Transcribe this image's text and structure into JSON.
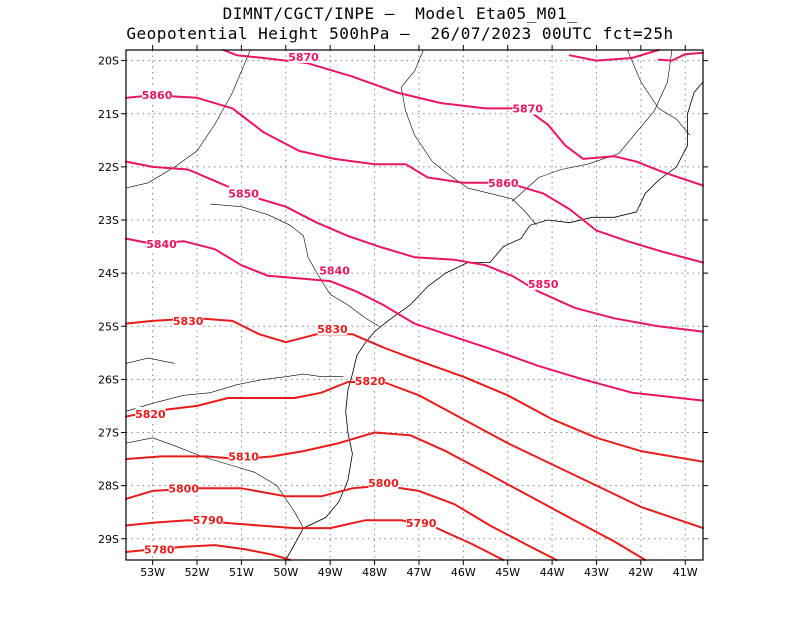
{
  "title_line1": "DIMNT/CGCT/INPE –  Model Eta05_M01_",
  "title_line2": "Geopotential Height 500hPa –  26/07/2023 00UTC fct=25h",
  "colors": {
    "pink": "#e8175d",
    "red": "#e81b1b",
    "coast": "#000000",
    "grid": "#888888"
  },
  "chart_data": {
    "type": "contour",
    "xlim": [
      -53.6,
      -40.6
    ],
    "ylim": [
      -29.4,
      -19.8
    ],
    "x_ticks": [
      {
        "v": -53,
        "label": "53W"
      },
      {
        "v": -52,
        "label": "52W"
      },
      {
        "v": -51,
        "label": "51W"
      },
      {
        "v": -50,
        "label": "50W"
      },
      {
        "v": -49,
        "label": "49W"
      },
      {
        "v": -48,
        "label": "48W"
      },
      {
        "v": -47,
        "label": "47W"
      },
      {
        "v": -46,
        "label": "46W"
      },
      {
        "v": -45,
        "label": "45W"
      },
      {
        "v": -44,
        "label": "44W"
      },
      {
        "v": -43,
        "label": "43W"
      },
      {
        "v": -42,
        "label": "42W"
      },
      {
        "v": -41,
        "label": "41W"
      }
    ],
    "y_ticks": [
      {
        "v": -20,
        "label": "20S"
      },
      {
        "v": -21,
        "label": "21S"
      },
      {
        "v": -22,
        "label": "22S"
      },
      {
        "v": -23,
        "label": "23S"
      },
      {
        "v": -24,
        "label": "24S"
      },
      {
        "v": -25,
        "label": "25S"
      },
      {
        "v": -26,
        "label": "26S"
      },
      {
        "v": -27,
        "label": "27S"
      },
      {
        "v": -28,
        "label": "28S"
      },
      {
        "v": -29,
        "label": "29S"
      }
    ],
    "grid": true,
    "contours": [
      {
        "level": "5870",
        "color": "pink",
        "points": [
          [
            -51.4,
            -19.8
          ],
          [
            -51.1,
            -19.9
          ],
          [
            -50.5,
            -19.95
          ],
          [
            -49.5,
            -20.05
          ],
          [
            -48.5,
            -20.3
          ],
          [
            -47.5,
            -20.6
          ],
          [
            -46.5,
            -20.8
          ],
          [
            -45.5,
            -20.9
          ],
          [
            -44.6,
            -20.9
          ],
          [
            -44.1,
            -21.2
          ],
          [
            -43.7,
            -21.6
          ],
          [
            -43.3,
            -21.85
          ],
          [
            -42.6,
            -21.8
          ],
          [
            -42.1,
            -21.9
          ],
          [
            -41.5,
            -22.1
          ],
          [
            -40.6,
            -22.35
          ]
        ],
        "labels": [
          {
            "x": -49.6,
            "y": -19.93
          },
          {
            "x": -44.55,
            "y": -20.9
          }
        ]
      },
      {
        "level": "5870",
        "color": "pink",
        "points": [
          [
            -41.6,
            -19.8
          ],
          [
            -42.2,
            -19.95
          ],
          [
            -43.0,
            -20.0
          ],
          [
            -43.6,
            -19.9
          ]
        ],
        "labels": []
      },
      {
        "level": "5870",
        "color": "pink",
        "points": [
          [
            -40.6,
            -19.85
          ],
          [
            -41.0,
            -19.88
          ],
          [
            -41.3,
            -20.0
          ],
          [
            -41.6,
            -19.98
          ]
        ],
        "labels": []
      },
      {
        "level": "5860",
        "color": "pink",
        "points": [
          [
            -53.6,
            -20.7
          ],
          [
            -53.0,
            -20.65
          ],
          [
            -52.0,
            -20.7
          ],
          [
            -51.2,
            -20.9
          ],
          [
            -50.5,
            -21.35
          ],
          [
            -49.7,
            -21.7
          ],
          [
            -48.9,
            -21.85
          ],
          [
            -48.0,
            -21.95
          ],
          [
            -47.3,
            -21.95
          ],
          [
            -46.8,
            -22.2
          ],
          [
            -46.0,
            -22.3
          ],
          [
            -45.0,
            -22.3
          ],
          [
            -44.2,
            -22.5
          ],
          [
            -43.6,
            -22.8
          ],
          [
            -43.0,
            -23.2
          ],
          [
            -42.3,
            -23.4
          ],
          [
            -41.5,
            -23.6
          ],
          [
            -40.6,
            -23.8
          ]
        ],
        "labels": [
          {
            "x": -52.9,
            "y": -20.65
          },
          {
            "x": -45.1,
            "y": -22.3
          }
        ]
      },
      {
        "level": "5850",
        "color": "pink",
        "points": [
          [
            -53.6,
            -21.9
          ],
          [
            -53.0,
            -22.0
          ],
          [
            -52.2,
            -22.05
          ],
          [
            -51.5,
            -22.3
          ],
          [
            -50.8,
            -22.55
          ],
          [
            -50.0,
            -22.75
          ],
          [
            -49.3,
            -23.05
          ],
          [
            -48.6,
            -23.3
          ],
          [
            -47.9,
            -23.5
          ],
          [
            -47.1,
            -23.7
          ],
          [
            -46.2,
            -23.75
          ],
          [
            -45.5,
            -23.85
          ],
          [
            -44.9,
            -24.05
          ],
          [
            -44.3,
            -24.35
          ],
          [
            -43.5,
            -24.65
          ],
          [
            -42.6,
            -24.85
          ],
          [
            -41.6,
            -25.0
          ],
          [
            -40.6,
            -25.1
          ]
        ],
        "labels": [
          {
            "x": -50.95,
            "y": -22.5
          },
          {
            "x": -44.2,
            "y": -24.2
          }
        ]
      },
      {
        "level": "5840",
        "color": "pink",
        "points": [
          [
            -53.6,
            -23.35
          ],
          [
            -53.0,
            -23.45
          ],
          [
            -52.3,
            -23.4
          ],
          [
            -51.6,
            -23.55
          ],
          [
            -51.0,
            -23.85
          ],
          [
            -50.4,
            -24.05
          ],
          [
            -49.7,
            -24.1
          ],
          [
            -49.0,
            -24.15
          ],
          [
            -48.4,
            -24.35
          ],
          [
            -47.8,
            -24.6
          ],
          [
            -47.1,
            -24.95
          ],
          [
            -46.2,
            -25.2
          ],
          [
            -45.3,
            -25.45
          ],
          [
            -44.3,
            -25.75
          ],
          [
            -43.3,
            -26.0
          ],
          [
            -42.2,
            -26.25
          ],
          [
            -40.6,
            -26.4
          ]
        ],
        "labels": [
          {
            "x": -52.8,
            "y": -23.45
          },
          {
            "x": -48.9,
            "y": -23.95
          }
        ]
      },
      {
        "level": "5830",
        "color": "red",
        "points": [
          [
            -53.6,
            -24.95
          ],
          [
            -53.0,
            -24.9
          ],
          [
            -52.0,
            -24.85
          ],
          [
            -51.2,
            -24.9
          ],
          [
            -50.6,
            -25.15
          ],
          [
            -50.0,
            -25.3
          ],
          [
            -49.3,
            -25.15
          ],
          [
            -48.5,
            -25.15
          ],
          [
            -47.8,
            -25.4
          ],
          [
            -47.0,
            -25.65
          ],
          [
            -46.0,
            -25.95
          ],
          [
            -45.0,
            -26.3
          ],
          [
            -44.0,
            -26.75
          ],
          [
            -43.0,
            -27.1
          ],
          [
            -42.0,
            -27.35
          ],
          [
            -40.6,
            -27.55
          ]
        ],
        "labels": [
          {
            "x": -52.2,
            "y": -24.9
          },
          {
            "x": -48.95,
            "y": -25.05
          }
        ]
      },
      {
        "level": "5820",
        "color": "red",
        "points": [
          [
            -53.6,
            -26.7
          ],
          [
            -53.0,
            -26.6
          ],
          [
            -52.0,
            -26.5
          ],
          [
            -51.3,
            -26.35
          ],
          [
            -50.5,
            -26.35
          ],
          [
            -49.8,
            -26.35
          ],
          [
            -49.2,
            -26.25
          ],
          [
            -48.6,
            -26.05
          ],
          [
            -47.8,
            -26.05
          ],
          [
            -47.0,
            -26.3
          ],
          [
            -46.0,
            -26.75
          ],
          [
            -45.0,
            -27.2
          ],
          [
            -44.0,
            -27.6
          ],
          [
            -43.0,
            -28.0
          ],
          [
            -42.0,
            -28.4
          ],
          [
            -40.6,
            -28.8
          ]
        ],
        "labels": [
          {
            "x": -53.05,
            "y": -26.65
          },
          {
            "x": -48.1,
            "y": -26.03
          }
        ]
      },
      {
        "level": "5810",
        "color": "red",
        "points": [
          [
            -53.6,
            -27.5
          ],
          [
            -52.8,
            -27.45
          ],
          [
            -51.8,
            -27.45
          ],
          [
            -51.0,
            -27.5
          ],
          [
            -50.3,
            -27.45
          ],
          [
            -49.6,
            -27.35
          ],
          [
            -48.8,
            -27.2
          ],
          [
            -48.0,
            -27.0
          ],
          [
            -47.2,
            -27.05
          ],
          [
            -46.4,
            -27.35
          ],
          [
            -45.5,
            -27.75
          ],
          [
            -44.5,
            -28.2
          ],
          [
            -43.5,
            -28.65
          ],
          [
            -42.6,
            -29.05
          ],
          [
            -41.9,
            -29.4
          ]
        ],
        "labels": [
          {
            "x": -50.95,
            "y": -27.45
          }
        ]
      },
      {
        "level": "5800",
        "color": "red",
        "points": [
          [
            -53.6,
            -28.25
          ],
          [
            -53.0,
            -28.1
          ],
          [
            -52.0,
            -28.05
          ],
          [
            -51.0,
            -28.05
          ],
          [
            -50.0,
            -28.2
          ],
          [
            -49.2,
            -28.2
          ],
          [
            -48.5,
            -28.05
          ],
          [
            -47.8,
            -28.0
          ],
          [
            -47.0,
            -28.1
          ],
          [
            -46.2,
            -28.35
          ],
          [
            -45.4,
            -28.75
          ],
          [
            -44.6,
            -29.1
          ],
          [
            -43.9,
            -29.4
          ]
        ],
        "labels": [
          {
            "x": -52.3,
            "y": -28.05
          },
          {
            "x": -47.8,
            "y": -27.95
          }
        ]
      },
      {
        "level": "5790",
        "color": "red",
        "points": [
          [
            -53.6,
            -28.75
          ],
          [
            -53.0,
            -28.7
          ],
          [
            -52.2,
            -28.65
          ],
          [
            -51.4,
            -28.7
          ],
          [
            -50.6,
            -28.75
          ],
          [
            -49.8,
            -28.8
          ],
          [
            -49.0,
            -28.8
          ],
          [
            -48.2,
            -28.65
          ],
          [
            -47.4,
            -28.65
          ],
          [
            -46.6,
            -28.8
          ],
          [
            -45.8,
            -29.1
          ],
          [
            -45.1,
            -29.4
          ]
        ],
        "labels": [
          {
            "x": -51.75,
            "y": -28.65
          },
          {
            "x": -46.95,
            "y": -28.7
          }
        ]
      },
      {
        "level": "5780",
        "color": "red",
        "points": [
          [
            -53.6,
            -29.25
          ],
          [
            -53.0,
            -29.2
          ],
          [
            -52.3,
            -29.15
          ],
          [
            -51.6,
            -29.12
          ],
          [
            -50.9,
            -29.2
          ],
          [
            -50.3,
            -29.3
          ],
          [
            -49.9,
            -29.4
          ]
        ],
        "labels": [
          {
            "x": -52.85,
            "y": -29.2
          }
        ]
      }
    ],
    "coastline": [
      [
        [
          -50.0,
          -29.4
        ],
        [
          -49.6,
          -28.8
        ],
        [
          -49.1,
          -28.6
        ],
        [
          -48.8,
          -28.3
        ],
        [
          -48.6,
          -27.9
        ],
        [
          -48.5,
          -27.4
        ],
        [
          -48.6,
          -27.0
        ],
        [
          -48.65,
          -26.6
        ],
        [
          -48.6,
          -26.2
        ],
        [
          -48.5,
          -25.9
        ],
        [
          -48.4,
          -25.55
        ],
        [
          -48.2,
          -25.3
        ],
        [
          -48.0,
          -25.1
        ],
        [
          -47.7,
          -24.9
        ],
        [
          -47.2,
          -24.6
        ],
        [
          -46.8,
          -24.25
        ],
        [
          -46.4,
          -24.0
        ],
        [
          -45.9,
          -23.8
        ],
        [
          -45.4,
          -23.8
        ],
        [
          -45.1,
          -23.5
        ],
        [
          -44.7,
          -23.35
        ],
        [
          -44.5,
          -23.1
        ],
        [
          -44.1,
          -23.0
        ],
        [
          -43.6,
          -23.05
        ],
        [
          -43.1,
          -22.95
        ],
        [
          -42.6,
          -22.95
        ],
        [
          -42.1,
          -22.85
        ],
        [
          -41.9,
          -22.5
        ],
        [
          -41.6,
          -22.25
        ],
        [
          -41.2,
          -22.0
        ],
        [
          -40.95,
          -21.6
        ],
        [
          -40.95,
          -21.0
        ],
        [
          -40.8,
          -20.6
        ],
        [
          -40.6,
          -20.4
        ]
      ]
    ],
    "borders": [
      [
        [
          -50.8,
          -19.8
        ],
        [
          -51.2,
          -20.6
        ],
        [
          -51.6,
          -21.2
        ],
        [
          -52.0,
          -21.7
        ],
        [
          -52.5,
          -22.0
        ],
        [
          -53.1,
          -22.3
        ],
        [
          -53.6,
          -22.4
        ]
      ],
      [
        [
          -51.7,
          -22.7
        ],
        [
          -51.0,
          -22.75
        ],
        [
          -50.4,
          -22.9
        ],
        [
          -49.9,
          -23.1
        ],
        [
          -49.6,
          -23.3
        ],
        [
          -49.5,
          -23.7
        ],
        [
          -49.3,
          -24.0
        ],
        [
          -49.0,
          -24.4
        ],
        [
          -48.6,
          -24.6
        ],
        [
          -48.2,
          -24.85
        ],
        [
          -47.9,
          -25.0
        ]
      ],
      [
        [
          -46.9,
          -19.8
        ],
        [
          -47.1,
          -20.2
        ],
        [
          -47.4,
          -20.5
        ],
        [
          -47.3,
          -20.95
        ],
        [
          -47.1,
          -21.4
        ],
        [
          -46.7,
          -21.9
        ],
        [
          -46.4,
          -22.1
        ],
        [
          -45.9,
          -22.4
        ],
        [
          -45.4,
          -22.5
        ],
        [
          -44.9,
          -22.6
        ],
        [
          -44.6,
          -22.85
        ],
        [
          -44.35,
          -23.1
        ]
      ],
      [
        [
          -44.9,
          -22.65
        ],
        [
          -44.3,
          -22.2
        ],
        [
          -43.8,
          -22.05
        ],
        [
          -43.2,
          -21.95
        ],
        [
          -42.5,
          -21.75
        ],
        [
          -42.1,
          -21.35
        ],
        [
          -41.7,
          -20.95
        ],
        [
          -41.4,
          -20.4
        ],
        [
          -41.3,
          -19.8
        ]
      ],
      [
        [
          -53.6,
          -26.6
        ],
        [
          -53.0,
          -26.45
        ],
        [
          -52.3,
          -26.3
        ],
        [
          -51.7,
          -26.25
        ],
        [
          -51.1,
          -26.1
        ],
        [
          -50.5,
          -26.0
        ],
        [
          -50.0,
          -25.95
        ],
        [
          -49.6,
          -25.9
        ],
        [
          -49.2,
          -25.95
        ],
        [
          -48.7,
          -25.95
        ]
      ],
      [
        [
          -53.6,
          -27.2
        ],
        [
          -53.0,
          -27.1
        ],
        [
          -52.5,
          -27.25
        ],
        [
          -51.9,
          -27.45
        ],
        [
          -51.3,
          -27.6
        ],
        [
          -50.7,
          -27.75
        ],
        [
          -50.2,
          -28.0
        ],
        [
          -49.8,
          -28.5
        ],
        [
          -49.6,
          -28.8
        ]
      ],
      [
        [
          -42.3,
          -19.8
        ],
        [
          -42.0,
          -20.4
        ],
        [
          -41.6,
          -20.9
        ],
        [
          -41.2,
          -21.1
        ],
        [
          -40.9,
          -21.4
        ]
      ],
      [
        [
          -53.6,
          -25.7
        ],
        [
          -53.1,
          -25.6
        ],
        [
          -52.5,
          -25.7
        ]
      ]
    ]
  }
}
